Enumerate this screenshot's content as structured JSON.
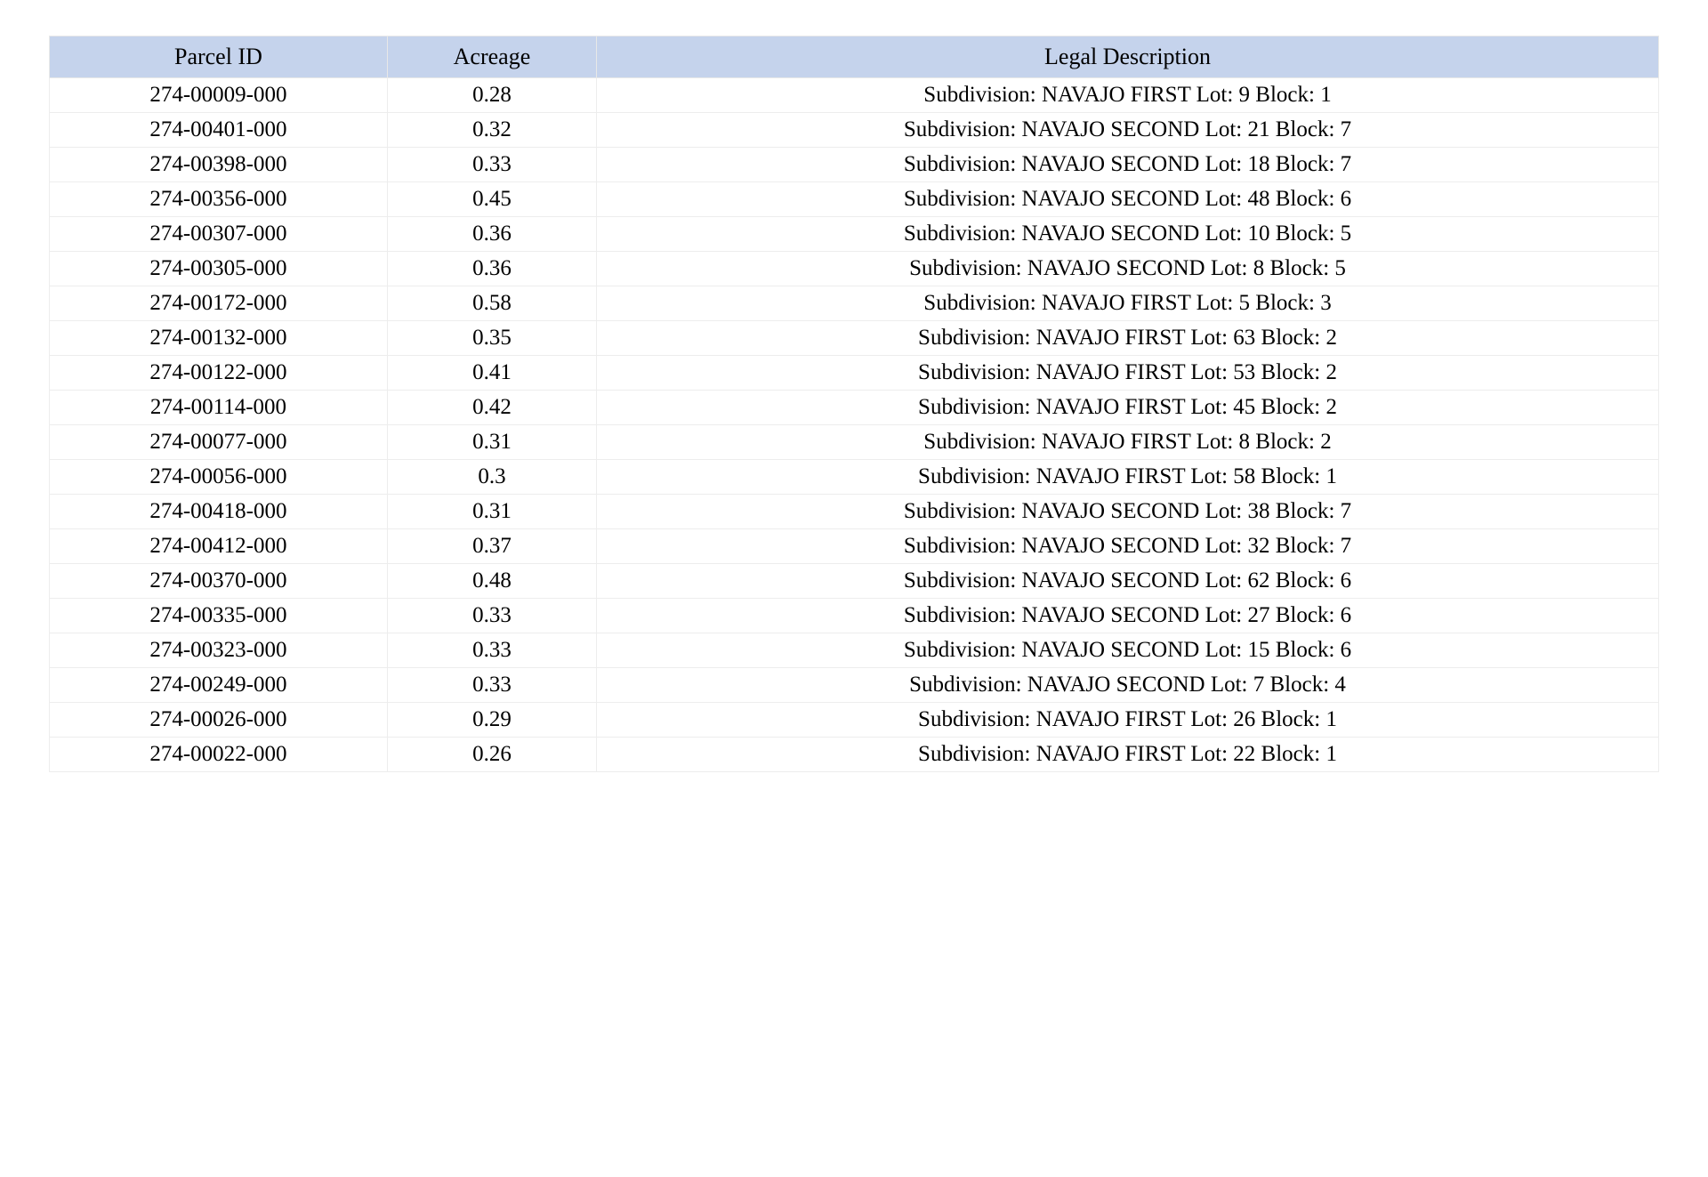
{
  "table": {
    "header_bg": "#c5d3ec",
    "border_color": "#ededed",
    "font_family": "Times New Roman",
    "header_fontsize": 26,
    "cell_fontsize": 25,
    "text_color": "#000000",
    "columns": [
      {
        "key": "parcel_id",
        "label": "Parcel ID",
        "width_pct": 21,
        "align": "center"
      },
      {
        "key": "acreage",
        "label": "Acreage",
        "width_pct": 13,
        "align": "center"
      },
      {
        "key": "legal_description",
        "label": "Legal Description",
        "width_pct": 66,
        "align": "center"
      }
    ],
    "rows": [
      {
        "parcel_id": "274-00009-000",
        "acreage": "0.28",
        "legal_description": "Subdivision: NAVAJO FIRST Lot: 9 Block: 1"
      },
      {
        "parcel_id": "274-00401-000",
        "acreage": "0.32",
        "legal_description": "Subdivision: NAVAJO SECOND Lot: 21 Block: 7"
      },
      {
        "parcel_id": "274-00398-000",
        "acreage": "0.33",
        "legal_description": "Subdivision: NAVAJO SECOND Lot: 18 Block: 7"
      },
      {
        "parcel_id": "274-00356-000",
        "acreage": "0.45",
        "legal_description": "Subdivision: NAVAJO SECOND Lot: 48 Block: 6"
      },
      {
        "parcel_id": "274-00307-000",
        "acreage": "0.36",
        "legal_description": "Subdivision: NAVAJO SECOND Lot: 10 Block: 5"
      },
      {
        "parcel_id": "274-00305-000",
        "acreage": "0.36",
        "legal_description": "Subdivision: NAVAJO SECOND Lot: 8 Block: 5"
      },
      {
        "parcel_id": "274-00172-000",
        "acreage": "0.58",
        "legal_description": "Subdivision: NAVAJO FIRST Lot: 5 Block: 3"
      },
      {
        "parcel_id": "274-00132-000",
        "acreage": "0.35",
        "legal_description": "Subdivision: NAVAJO FIRST Lot: 63 Block: 2"
      },
      {
        "parcel_id": "274-00122-000",
        "acreage": "0.41",
        "legal_description": "Subdivision: NAVAJO FIRST Lot: 53 Block: 2"
      },
      {
        "parcel_id": "274-00114-000",
        "acreage": "0.42",
        "legal_description": "Subdivision: NAVAJO FIRST Lot: 45 Block: 2"
      },
      {
        "parcel_id": "274-00077-000",
        "acreage": "0.31",
        "legal_description": "Subdivision: NAVAJO FIRST Lot: 8 Block: 2"
      },
      {
        "parcel_id": "274-00056-000",
        "acreage": "0.3",
        "legal_description": "Subdivision: NAVAJO FIRST Lot: 58 Block: 1"
      },
      {
        "parcel_id": "274-00418-000",
        "acreage": "0.31",
        "legal_description": "Subdivision: NAVAJO SECOND Lot: 38 Block: 7"
      },
      {
        "parcel_id": "274-00412-000",
        "acreage": "0.37",
        "legal_description": "Subdivision: NAVAJO SECOND Lot: 32 Block: 7"
      },
      {
        "parcel_id": "274-00370-000",
        "acreage": "0.48",
        "legal_description": "Subdivision: NAVAJO SECOND Lot: 62 Block: 6"
      },
      {
        "parcel_id": "274-00335-000",
        "acreage": "0.33",
        "legal_description": "Subdivision: NAVAJO SECOND Lot: 27 Block: 6"
      },
      {
        "parcel_id": "274-00323-000",
        "acreage": "0.33",
        "legal_description": "Subdivision: NAVAJO SECOND Lot: 15 Block: 6"
      },
      {
        "parcel_id": "274-00249-000",
        "acreage": "0.33",
        "legal_description": "Subdivision: NAVAJO SECOND Lot: 7 Block: 4"
      },
      {
        "parcel_id": "274-00026-000",
        "acreage": "0.29",
        "legal_description": "Subdivision: NAVAJO FIRST Lot: 26 Block: 1"
      },
      {
        "parcel_id": "274-00022-000",
        "acreage": "0.26",
        "legal_description": "Subdivision: NAVAJO FIRST Lot: 22 Block: 1"
      }
    ]
  }
}
